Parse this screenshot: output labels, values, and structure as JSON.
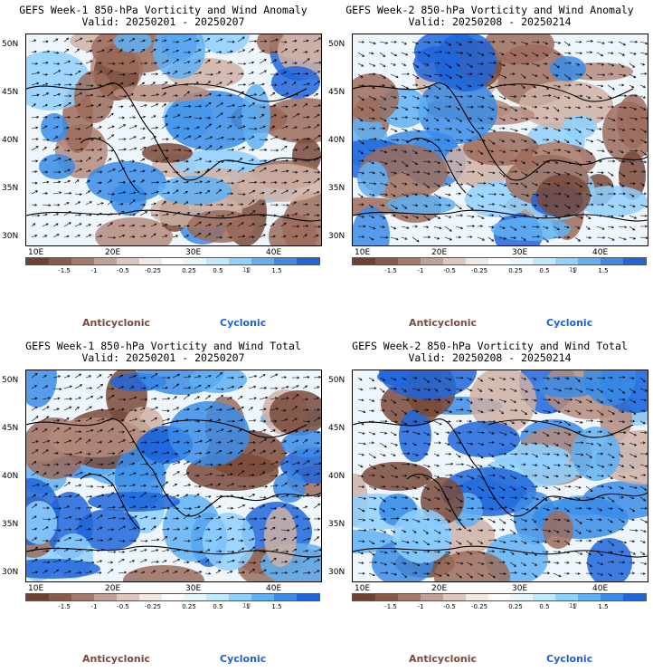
{
  "panels": [
    {
      "title1": "GEFS Week-1 850-hPa Vorticity and Wind Anomaly",
      "title2": "Valid: 20250201 - 20250207",
      "type": "anomaly"
    },
    {
      "title1": "GEFS Week-2 850-hPa Vorticity and Wind Anomaly",
      "title2": "Valid: 20250208 - 20250214",
      "type": "anomaly"
    },
    {
      "title1": "GEFS Week-1 850-hPa Vorticity and Wind Total",
      "title2": "Valid: 20250201 - 20250207",
      "type": "total"
    },
    {
      "title1": "GEFS Week-2 850-hPa Vorticity and Wind Total",
      "title2": "Valid: 20250208 - 20250214",
      "type": "total"
    }
  ],
  "axes": {
    "lat_labels": [
      "50N",
      "45N",
      "40N",
      "35N",
      "30N"
    ],
    "lon_labels": [
      "10E",
      "20E",
      "30E",
      "40E"
    ]
  },
  "colorbar": {
    "ticks": [
      "-1.5",
      "-1",
      "-0.5",
      "-0.25",
      "0.25",
      "0.5",
      "1",
      "1.5"
    ],
    "unit": "10",
    "colors": [
      "#6e4132",
      "#8a5a48",
      "#a6786a",
      "#c3a095",
      "#ddc6bd",
      "#f3e9e4",
      "#ffffff",
      "#e6f7ff",
      "#bfe9ff",
      "#8fd0ff",
      "#5fb0f5",
      "#3a8ce8",
      "#1f66dc"
    ]
  },
  "legend": {
    "anticyclonic": "Anticyclonic",
    "cyclonic": "Cyclonic"
  },
  "colors": {
    "anticyclonic": "#7a4a3a",
    "cyclonic": "#1f5fd8"
  }
}
